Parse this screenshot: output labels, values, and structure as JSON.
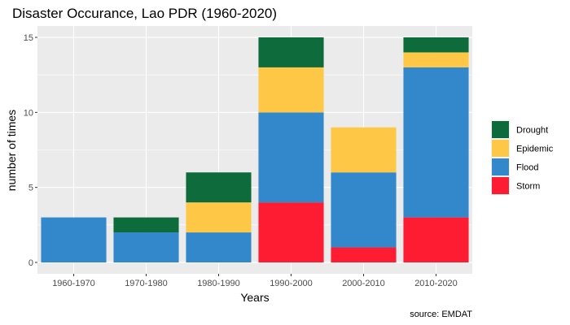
{
  "chart_data": {
    "type": "bar",
    "stacked": true,
    "title": "Disaster Occurance, Lao PDR (1960-2020)",
    "xlabel": "Years",
    "ylabel": "number of times",
    "caption": "source: EMDAT",
    "categories": [
      "1960-1970",
      "1970-1980",
      "1980-1990",
      "1990-2000",
      "2000-2010",
      "2010-2020"
    ],
    "ylim": [
      0,
      15
    ],
    "yticks": [
      0,
      5,
      10,
      15
    ],
    "grid": true,
    "legend_position": "right",
    "stack_order": [
      "Storm",
      "Flood",
      "Epidemic",
      "Drought"
    ],
    "series": [
      {
        "name": "Drought",
        "color": "#0e6b3c",
        "values": [
          0,
          1,
          2,
          2,
          0,
          1
        ]
      },
      {
        "name": "Epidemic",
        "color": "#fec745",
        "values": [
          0,
          0,
          2,
          3,
          3,
          1
        ]
      },
      {
        "name": "Flood",
        "color": "#3387cb",
        "values": [
          3,
          2,
          2,
          6,
          5,
          10
        ]
      },
      {
        "name": "Storm",
        "color": "#fe1c32",
        "values": [
          0,
          0,
          0,
          4,
          1,
          3
        ]
      }
    ]
  }
}
